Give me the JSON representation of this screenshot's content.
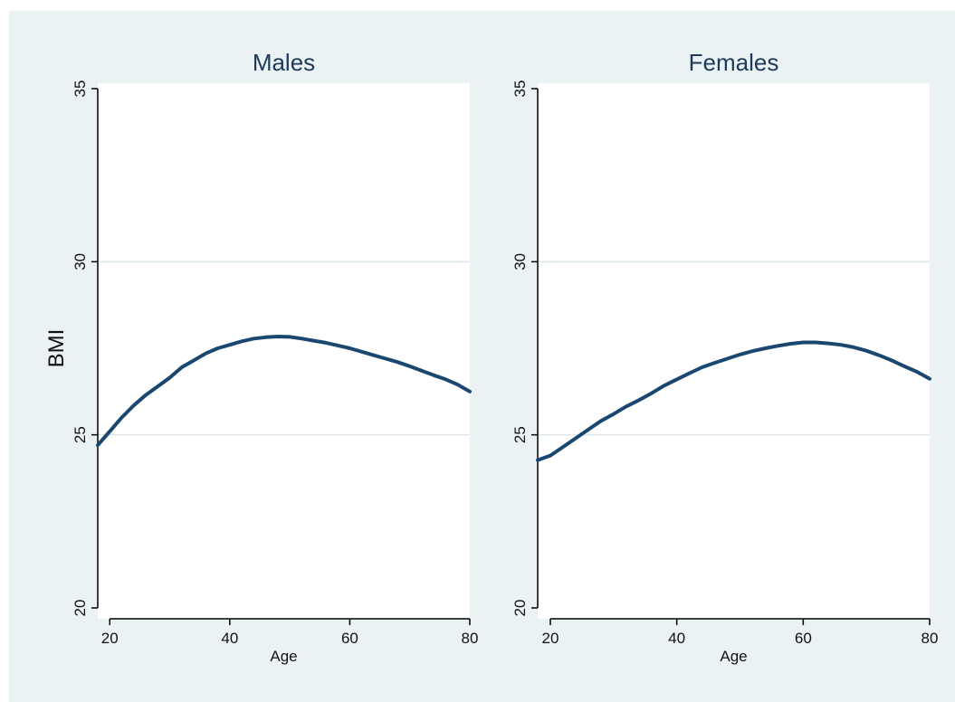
{
  "chart_data": [
    {
      "type": "line",
      "title": "Males",
      "xlabel": "Age",
      "ylabel": "BMI",
      "xlim": [
        18,
        80
      ],
      "ylim": [
        20,
        35
      ],
      "xticks": [
        20,
        40,
        60,
        80
      ],
      "yticks": [
        20,
        25,
        30,
        35
      ],
      "grid": "horizontal at y ticks",
      "series_color": "#1a476f",
      "x": [
        18,
        20,
        22,
        24,
        26,
        28,
        30,
        32,
        34,
        36,
        38,
        40,
        42,
        44,
        46,
        48,
        50,
        52,
        54,
        56,
        58,
        60,
        62,
        64,
        66,
        68,
        70,
        72,
        74,
        76,
        78,
        80
      ],
      "y": [
        24.7,
        25.1,
        25.5,
        25.85,
        26.15,
        26.4,
        26.65,
        26.95,
        27.15,
        27.35,
        27.5,
        27.6,
        27.7,
        27.78,
        27.82,
        27.84,
        27.83,
        27.78,
        27.72,
        27.66,
        27.58,
        27.5,
        27.4,
        27.3,
        27.2,
        27.1,
        26.98,
        26.85,
        26.72,
        26.6,
        26.45,
        26.25
      ]
    },
    {
      "type": "line",
      "title": "Females",
      "xlabel": "Age",
      "ylabel": "",
      "xlim": [
        18,
        80
      ],
      "ylim": [
        20,
        35
      ],
      "xticks": [
        20,
        40,
        60,
        80
      ],
      "yticks": [
        20,
        25,
        30,
        35
      ],
      "grid": "horizontal at y ticks",
      "series_color": "#1a476f",
      "x": [
        18,
        20,
        22,
        24,
        26,
        28,
        30,
        32,
        34,
        36,
        38,
        40,
        42,
        44,
        46,
        48,
        50,
        52,
        54,
        56,
        58,
        60,
        62,
        64,
        66,
        68,
        70,
        72,
        74,
        76,
        78,
        80
      ],
      "y": [
        24.27,
        24.4,
        24.65,
        24.9,
        25.15,
        25.4,
        25.6,
        25.82,
        26.0,
        26.2,
        26.42,
        26.6,
        26.78,
        26.95,
        27.08,
        27.2,
        27.32,
        27.42,
        27.5,
        27.57,
        27.63,
        27.67,
        27.67,
        27.64,
        27.6,
        27.53,
        27.43,
        27.3,
        27.15,
        26.98,
        26.82,
        26.62
      ]
    }
  ]
}
